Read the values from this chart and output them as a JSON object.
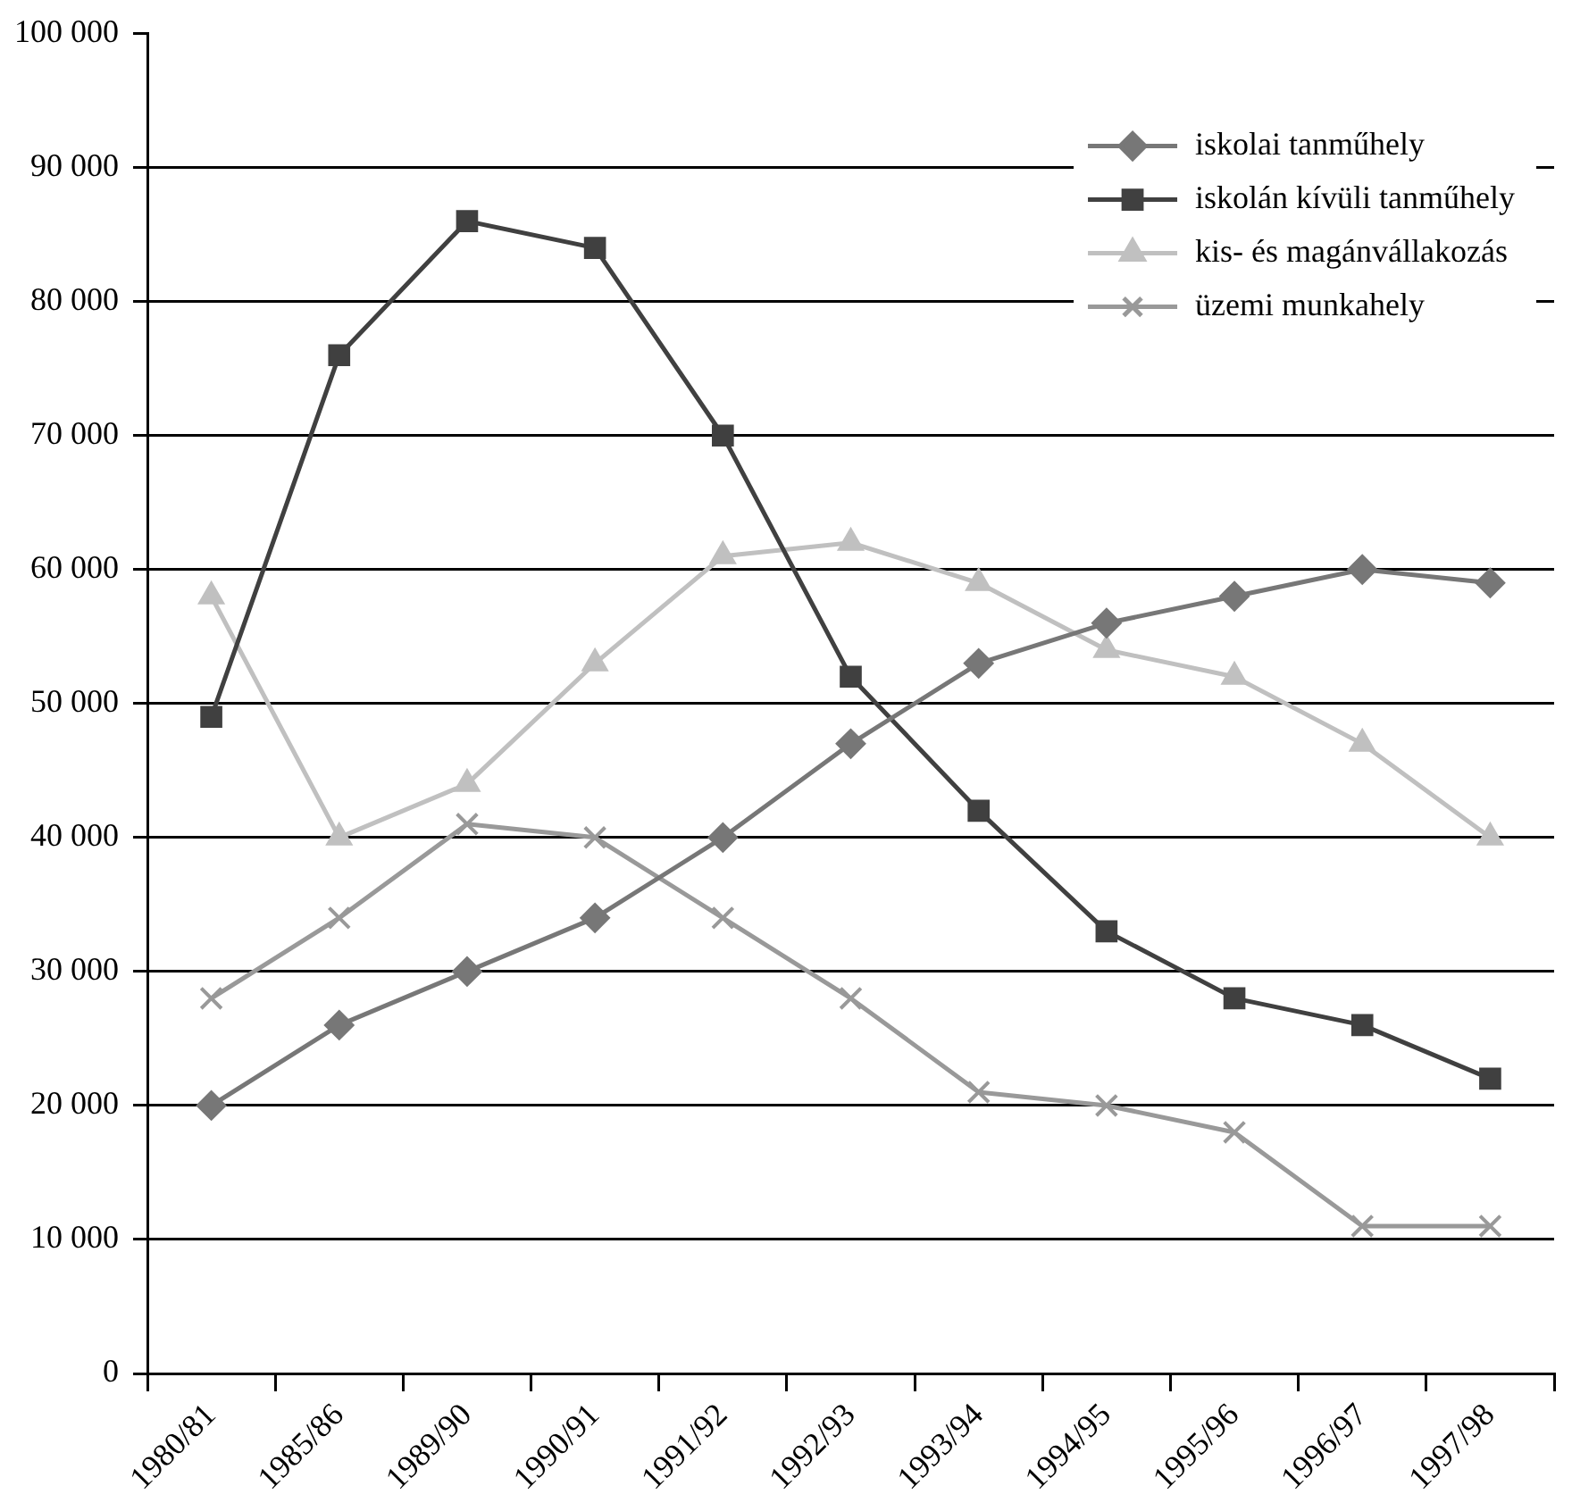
{
  "chart_data": {
    "type": "line",
    "categories": [
      "1980/81",
      "1985/86",
      "1989/90",
      "1990/91",
      "1991/92",
      "1992/93",
      "1993/94",
      "1994/95",
      "1995/96",
      "1996/97",
      "1997/98"
    ],
    "series": [
      {
        "name": "iskolai tanműhely",
        "color": "#777777",
        "marker": "diamond",
        "values": [
          20000,
          26000,
          30000,
          34000,
          40000,
          47000,
          53000,
          56000,
          58000,
          60000,
          59000
        ]
      },
      {
        "name": "iskolán kívüli tanműhely",
        "color": "#404040",
        "marker": "square",
        "values": [
          49000,
          76000,
          86000,
          84000,
          70000,
          52000,
          42000,
          33000,
          28000,
          26000,
          22000
        ]
      },
      {
        "name": "kis- és magánvállakozás",
        "color": "#c0c0c0",
        "marker": "triangle",
        "values": [
          58000,
          40000,
          44000,
          53000,
          61000,
          62000,
          59000,
          54000,
          52000,
          47000,
          40000
        ]
      },
      {
        "name": "üzemi munkahely",
        "color": "#999999",
        "marker": "cross",
        "values": [
          28000,
          34000,
          41000,
          40000,
          34000,
          28000,
          21000,
          20000,
          18000,
          11000,
          11000
        ]
      }
    ],
    "ylim": [
      0,
      100000
    ],
    "yticks": [
      0,
      {
        "value": 10000,
        "label": "10 000"
      },
      {
        "value": 20000,
        "label": "20 000"
      },
      {
        "value": 30000,
        "label": "30 000"
      },
      {
        "value": 40000,
        "label": "40 000"
      },
      {
        "value": 50000,
        "label": "50 000"
      },
      {
        "value": 60000,
        "label": "60 000"
      },
      {
        "value": 70000,
        "label": "70 000"
      },
      {
        "value": 80000,
        "label": "80 000"
      },
      {
        "value": 90000,
        "label": "90 000"
      },
      {
        "value": 100000,
        "label": "100 000"
      }
    ],
    "grid": "y",
    "legend": "top right"
  }
}
